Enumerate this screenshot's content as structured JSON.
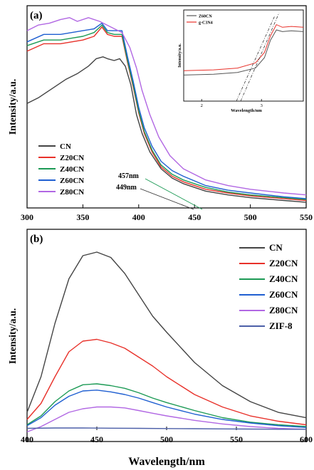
{
  "colors": {
    "CN": "#444444",
    "Z20CN": "#e8312a",
    "Z40CN": "#1c9a55",
    "Z60CN": "#1f5fd1",
    "Z80CN": "#b167e3",
    "ZIF8": "#4c5fa8",
    "inset_Z60CN": "#555555",
    "inset_gC3N4": "#e8312a"
  },
  "chart_data": [
    {
      "type": "line",
      "panel_label": "(a)",
      "ylabel": "Intensity/a.u.",
      "xlabel": "",
      "xlim": [
        300,
        550
      ],
      "x_ticks": [
        300,
        350,
        400,
        450,
        500,
        550
      ],
      "legend": [
        "CN",
        "Z20CN",
        "Z40CN",
        "Z60CN",
        "Z80CN"
      ],
      "legend_position": "left",
      "annotations": [
        "457nm",
        "449nm"
      ],
      "series": [
        {
          "name": "CN",
          "x": [
            300,
            310,
            320,
            335,
            345,
            355,
            362,
            368,
            372,
            378,
            383,
            388,
            393,
            398,
            403,
            410,
            420,
            430,
            440,
            460,
            480,
            500,
            530,
            550
          ],
          "y": [
            0.56,
            0.59,
            0.63,
            0.69,
            0.72,
            0.76,
            0.8,
            0.81,
            0.8,
            0.79,
            0.8,
            0.76,
            0.66,
            0.5,
            0.4,
            0.3,
            0.21,
            0.16,
            0.13,
            0.09,
            0.07,
            0.055,
            0.04,
            0.03
          ]
        },
        {
          "name": "Z20CN",
          "x": [
            300,
            315,
            330,
            340,
            350,
            360,
            367,
            372,
            378,
            385,
            390,
            395,
            400,
            405,
            412,
            420,
            430,
            440,
            460,
            480,
            500,
            530,
            550
          ],
          "y": [
            0.84,
            0.88,
            0.88,
            0.89,
            0.9,
            0.92,
            0.97,
            0.93,
            0.92,
            0.92,
            0.78,
            0.65,
            0.51,
            0.4,
            0.3,
            0.22,
            0.17,
            0.14,
            0.1,
            0.08,
            0.065,
            0.05,
            0.04
          ]
        },
        {
          "name": "Z40CN",
          "x": [
            300,
            315,
            330,
            340,
            350,
            360,
            367,
            372,
            378,
            385,
            390,
            395,
            400,
            405,
            412,
            420,
            430,
            440,
            460,
            480,
            500,
            530,
            550
          ],
          "y": [
            0.87,
            0.9,
            0.9,
            0.91,
            0.92,
            0.94,
            0.98,
            0.94,
            0.93,
            0.93,
            0.79,
            0.66,
            0.52,
            0.41,
            0.31,
            0.23,
            0.18,
            0.15,
            0.11,
            0.085,
            0.07,
            0.055,
            0.045
          ]
        },
        {
          "name": "Z60CN",
          "x": [
            300,
            315,
            330,
            340,
            350,
            360,
            367,
            372,
            378,
            385,
            390,
            395,
            400,
            405,
            412,
            420,
            430,
            440,
            460,
            480,
            500,
            530,
            550
          ],
          "y": [
            0.89,
            0.93,
            0.93,
            0.94,
            0.95,
            0.96,
            0.99,
            0.95,
            0.95,
            0.95,
            0.81,
            0.68,
            0.54,
            0.43,
            0.33,
            0.25,
            0.2,
            0.17,
            0.12,
            0.095,
            0.08,
            0.06,
            0.05
          ]
        },
        {
          "name": "Z80CN",
          "x": [
            300,
            310,
            320,
            330,
            338,
            345,
            355,
            365,
            375,
            385,
            392,
            398,
            403,
            410,
            418,
            428,
            440,
            460,
            480,
            500,
            530,
            550
          ],
          "y": [
            0.95,
            0.98,
            0.99,
            1.01,
            1.02,
            1.0,
            1.02,
            1.0,
            0.97,
            0.94,
            0.86,
            0.75,
            0.63,
            0.5,
            0.38,
            0.28,
            0.21,
            0.15,
            0.12,
            0.1,
            0.08,
            0.07
          ]
        }
      ],
      "inset": {
        "type": "line",
        "xlabel": "Wavelength/nm",
        "ylabel": "Intensity/a.u.",
        "x_ticks": [
          2,
          3
        ],
        "xlim": [
          1.7,
          3.7
        ],
        "legend": [
          "Z60CN",
          "g-C3N4"
        ],
        "legend_position": "top-left",
        "series": [
          {
            "name": "Z60CN",
            "x": [
              1.7,
              2.2,
              2.6,
              2.9,
              3.05,
              3.15,
              3.25,
              3.35,
              3.5,
              3.7
            ],
            "y": [
              0.3,
              0.31,
              0.33,
              0.38,
              0.5,
              0.7,
              0.82,
              0.8,
              0.81,
              0.8
            ]
          },
          {
            "name": "g-C3N4",
            "x": [
              1.7,
              2.2,
              2.6,
              2.9,
              3.05,
              3.15,
              3.25,
              3.35,
              3.5,
              3.7
            ],
            "y": [
              0.35,
              0.36,
              0.38,
              0.44,
              0.56,
              0.75,
              0.88,
              0.85,
              0.86,
              0.85
            ]
          }
        ]
      }
    },
    {
      "type": "line",
      "panel_label": "(b)",
      "xlabel": "Wavelength/nm",
      "ylabel": "Intensity/a.u.",
      "xlim": [
        400,
        600
      ],
      "x_ticks": [
        400,
        450,
        500,
        550,
        600
      ],
      "legend": [
        "CN",
        "Z20CN",
        "Z40CN",
        "Z60CN",
        "Z80CN",
        "ZIF-8"
      ],
      "legend_position": "top-right",
      "series": [
        {
          "name": "CN",
          "x": [
            400,
            410,
            420,
            430,
            440,
            450,
            460,
            470,
            480,
            490,
            500,
            520,
            540,
            560,
            580,
            600
          ],
          "y": [
            0.1,
            0.3,
            0.6,
            0.85,
            0.98,
            1.0,
            0.97,
            0.88,
            0.76,
            0.64,
            0.55,
            0.38,
            0.25,
            0.16,
            0.1,
            0.07
          ]
        },
        {
          "name": "Z20CN",
          "x": [
            400,
            410,
            420,
            430,
            440,
            450,
            460,
            470,
            480,
            490,
            500,
            520,
            540,
            560,
            580,
            600
          ],
          "y": [
            0.06,
            0.15,
            0.3,
            0.44,
            0.5,
            0.51,
            0.49,
            0.46,
            0.41,
            0.36,
            0.3,
            0.2,
            0.13,
            0.08,
            0.05,
            0.03
          ]
        },
        {
          "name": "Z40CN",
          "x": [
            400,
            410,
            420,
            430,
            440,
            450,
            460,
            470,
            480,
            490,
            500,
            520,
            540,
            560,
            580,
            600
          ],
          "y": [
            0.03,
            0.08,
            0.16,
            0.22,
            0.255,
            0.26,
            0.25,
            0.235,
            0.21,
            0.18,
            0.155,
            0.11,
            0.07,
            0.045,
            0.03,
            0.02
          ]
        },
        {
          "name": "Z60CN",
          "x": [
            400,
            410,
            420,
            430,
            440,
            450,
            460,
            470,
            480,
            490,
            500,
            520,
            540,
            560,
            580,
            600
          ],
          "y": [
            0.025,
            0.07,
            0.14,
            0.19,
            0.22,
            0.225,
            0.215,
            0.2,
            0.18,
            0.155,
            0.13,
            0.09,
            0.06,
            0.04,
            0.025,
            0.015
          ]
        },
        {
          "name": "Z80CN",
          "x": [
            400,
            410,
            420,
            430,
            440,
            450,
            460,
            470,
            480,
            490,
            500,
            520,
            540,
            560,
            580,
            600
          ],
          "y": [
            -0.01,
            0.02,
            0.06,
            0.1,
            0.12,
            0.13,
            0.13,
            0.125,
            0.11,
            0.095,
            0.08,
            0.055,
            0.035,
            0.02,
            0.01,
            0.005
          ]
        },
        {
          "name": "ZIF-8",
          "x": [
            400,
            420,
            440,
            460,
            480,
            500,
            520,
            540,
            560,
            580,
            600
          ],
          "y": [
            0.01,
            0.012,
            0.012,
            0.011,
            0.01,
            0.009,
            0.008,
            0.007,
            0.006,
            0.005,
            0.005
          ]
        }
      ]
    }
  ]
}
